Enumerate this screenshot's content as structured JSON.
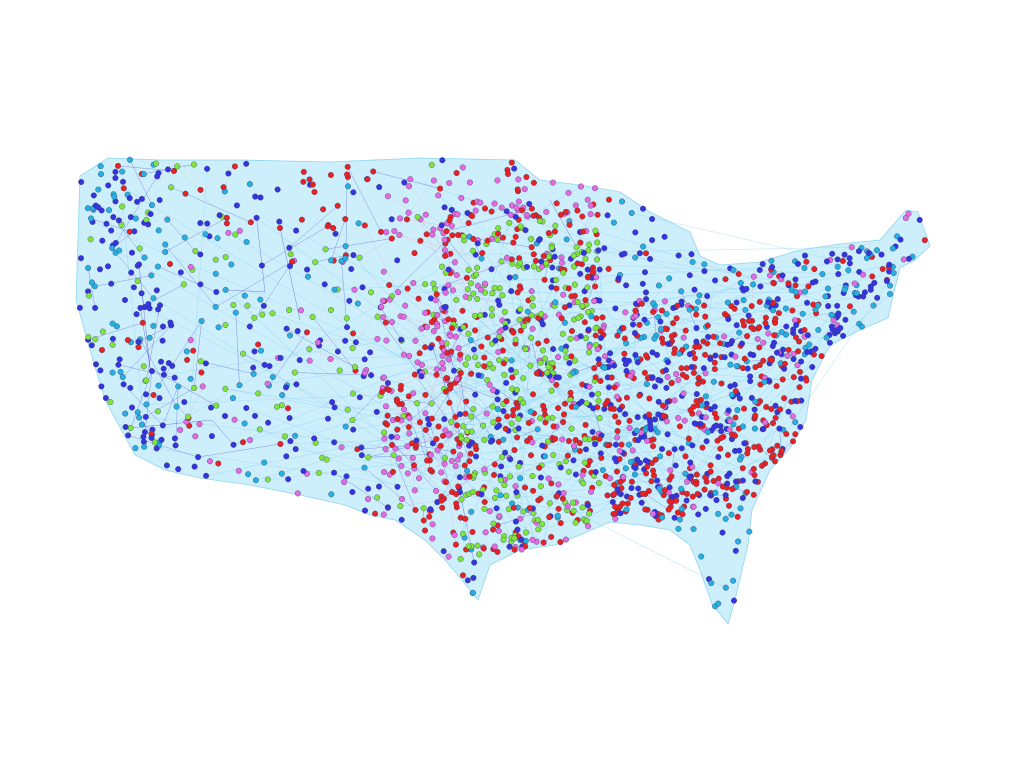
{
  "graph": {
    "type": "network-map",
    "region": "contiguous-united-states",
    "node_size": "small",
    "edge_style": "thin-semi-transparent",
    "colors": {
      "background": "#ffffff",
      "land_fill": "#cdeefb",
      "edge_primary": "#3b3bd6",
      "edge_light": "#8fd6f2",
      "edge_pink": "#f2a3c8",
      "edge_green": "#9bd96a"
    },
    "node_classes": [
      {
        "id": "blue",
        "color": "#3535e0"
      },
      {
        "id": "cyan",
        "color": "#25b0e0"
      },
      {
        "id": "green",
        "color": "#7ee63a"
      },
      {
        "id": "magenta",
        "color": "#e46ae0"
      },
      {
        "id": "red",
        "color": "#e82222"
      }
    ]
  }
}
